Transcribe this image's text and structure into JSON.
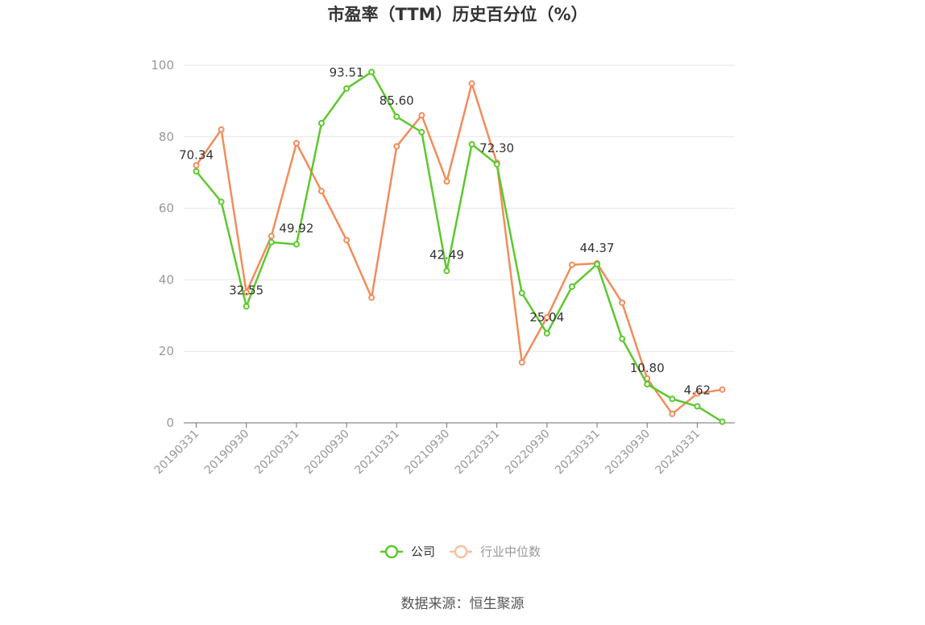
{
  "chart_data": {
    "type": "line",
    "title": "市盈率（TTM）历史百分位（%）",
    "ylim": [
      0,
      100
    ],
    "yticks": [
      0,
      20,
      40,
      60,
      80,
      100
    ],
    "grid": true,
    "legend_position": "bottom",
    "x": [
      "20190331",
      "20190630",
      "20190930",
      "20191231",
      "20200331",
      "20200630",
      "20200930",
      "20201231",
      "20210331",
      "20210630",
      "20210930",
      "20211231",
      "20220331",
      "20220630",
      "20220930",
      "20221231",
      "20230331",
      "20230630",
      "20230930",
      "20231231",
      "20240331",
      "20240630"
    ],
    "x_tick_labels": [
      "20190331",
      "20190930",
      "20200331",
      "20200930",
      "20210331",
      "20210930",
      "20220331",
      "20220930",
      "20230331",
      "20230930",
      "20240331"
    ],
    "series": [
      {
        "name": "公司",
        "color": "#5cc92c",
        "values": [
          70.34,
          61.8,
          32.55,
          50.5,
          49.92,
          83.8,
          93.51,
          98.1,
          85.6,
          81.3,
          42.49,
          77.9,
          72.3,
          36.3,
          25.04,
          38.1,
          44.37,
          23.5,
          10.8,
          6.7,
          4.62,
          0.3
        ],
        "labels": [
          {
            "index": 0,
            "text": "70.34"
          },
          {
            "index": 2,
            "text": "32.55"
          },
          {
            "index": 4,
            "text": "49.92"
          },
          {
            "index": 6,
            "text": "93.51"
          },
          {
            "index": 8,
            "text": "85.60"
          },
          {
            "index": 10,
            "text": "42.49"
          },
          {
            "index": 12,
            "text": "72.30"
          },
          {
            "index": 14,
            "text": "25.04"
          },
          {
            "index": 16,
            "text": "44.37"
          },
          {
            "index": 18,
            "text": "10.80"
          },
          {
            "index": 20,
            "text": "4.62"
          }
        ]
      },
      {
        "name": "行业中位数",
        "color": "#f28c5c",
        "values": [
          72.0,
          82.0,
          36.5,
          52.2,
          78.2,
          64.8,
          51.1,
          35.0,
          77.3,
          86.0,
          67.5,
          94.9,
          72.7,
          16.9,
          29.5,
          44.2,
          44.6,
          33.6,
          12.4,
          2.5,
          8.2,
          9.3
        ]
      }
    ],
    "source": "数据来源：恒生聚源"
  }
}
